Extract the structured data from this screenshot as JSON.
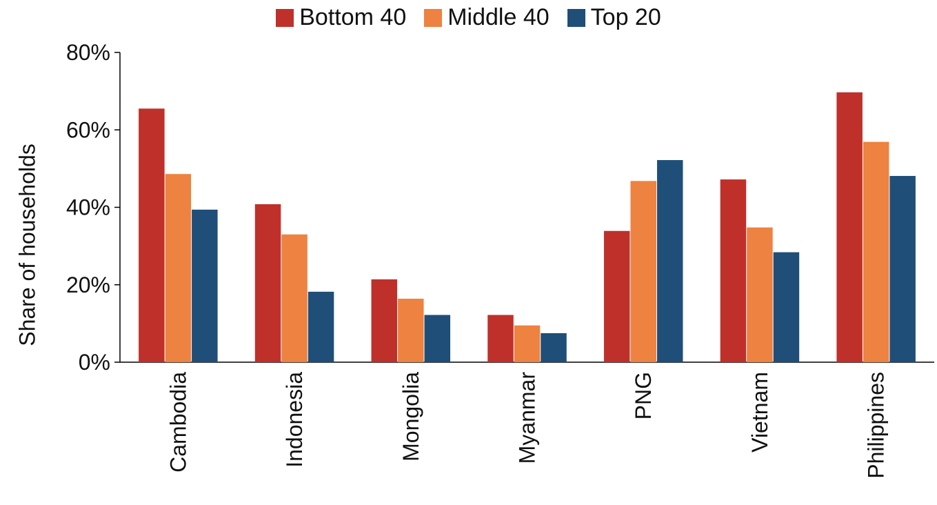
{
  "chart_data": {
    "type": "bar",
    "categories": [
      "Cambodia",
      "Indonesia",
      "Mongolia",
      "Myanmar",
      "PNG",
      "Vietnam",
      "Philippines"
    ],
    "series": [
      {
        "name": "Bottom 40",
        "color": "#c0302a",
        "values": [
          65.5,
          40.8,
          21.4,
          12.2,
          33.9,
          47.2,
          69.7
        ]
      },
      {
        "name": "Middle 40",
        "color": "#ee8240",
        "values": [
          48.6,
          33.0,
          16.4,
          9.5,
          46.8,
          34.8,
          56.9
        ]
      },
      {
        "name": "Top 20",
        "color": "#1f4e79",
        "values": [
          39.4,
          18.2,
          12.2,
          7.5,
          52.2,
          28.4,
          48.1
        ]
      }
    ],
    "ylabel": "Share of households",
    "xlabel": "",
    "ylim": [
      0,
      80
    ],
    "yticks": [
      "0%",
      "20%",
      "40%",
      "60%",
      "80%"
    ],
    "ytick_values": [
      0,
      20,
      40,
      60,
      80
    ],
    "grid": false,
    "legend_position": "top-center"
  }
}
